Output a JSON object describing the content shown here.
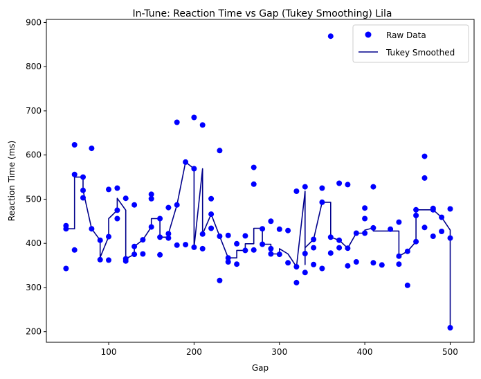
{
  "chart_data": {
    "type": "scatter",
    "title": "In-Tune: Reaction Time vs Gap (Tukey Smoothing) Lila",
    "xlabel": "Gap",
    "ylabel": "Reaction Time (ms)",
    "xlim": [
      27,
      528
    ],
    "ylim": [
      176,
      907
    ],
    "xticks": [
      100,
      200,
      300,
      400,
      500
    ],
    "yticks": [
      200,
      300,
      400,
      500,
      600,
      700,
      800,
      900
    ],
    "grid": false,
    "legend_position": "top-right",
    "series": [
      {
        "name": "Raw Data",
        "kind": "scatter",
        "color": "#0000ff",
        "points": [
          [
            50,
            440
          ],
          [
            50,
            433
          ],
          [
            50,
            343
          ],
          [
            60,
            623
          ],
          [
            60,
            556
          ],
          [
            60,
            385
          ],
          [
            70,
            550
          ],
          [
            70,
            520
          ],
          [
            70,
            503
          ],
          [
            80,
            615
          ],
          [
            80,
            433
          ],
          [
            90,
            407
          ],
          [
            90,
            363
          ],
          [
            100,
            522
          ],
          [
            100,
            415
          ],
          [
            100,
            362
          ],
          [
            110,
            525
          ],
          [
            110,
            475
          ],
          [
            110,
            456
          ],
          [
            120,
            502
          ],
          [
            120,
            365
          ],
          [
            120,
            360
          ],
          [
            130,
            487
          ],
          [
            130,
            393
          ],
          [
            130,
            375
          ],
          [
            140,
            408
          ],
          [
            140,
            376
          ],
          [
            150,
            511
          ],
          [
            150,
            501
          ],
          [
            150,
            437
          ],
          [
            160,
            456
          ],
          [
            160,
            414
          ],
          [
            160,
            374
          ],
          [
            170,
            481
          ],
          [
            170,
            422
          ],
          [
            170,
            412
          ],
          [
            180,
            674
          ],
          [
            180,
            487
          ],
          [
            180,
            396
          ],
          [
            190,
            584
          ],
          [
            190,
            397
          ],
          [
            200,
            685
          ],
          [
            200,
            569
          ],
          [
            200,
            391
          ],
          [
            210,
            668
          ],
          [
            210,
            421
          ],
          [
            210,
            388
          ],
          [
            220,
            501
          ],
          [
            220,
            466
          ],
          [
            220,
            434
          ],
          [
            230,
            610
          ],
          [
            230,
            416
          ],
          [
            230,
            316
          ],
          [
            240,
            418
          ],
          [
            240,
            367
          ],
          [
            240,
            358
          ],
          [
            250,
            399
          ],
          [
            250,
            353
          ],
          [
            260,
            417
          ],
          [
            260,
            384
          ],
          [
            270,
            572
          ],
          [
            270,
            534
          ],
          [
            270,
            385
          ],
          [
            280,
            433
          ],
          [
            280,
            398
          ],
          [
            290,
            450
          ],
          [
            290,
            388
          ],
          [
            290,
            376
          ],
          [
            300,
            432
          ],
          [
            300,
            375
          ],
          [
            310,
            429
          ],
          [
            310,
            356
          ],
          [
            320,
            518
          ],
          [
            320,
            347
          ],
          [
            320,
            311
          ],
          [
            330,
            528
          ],
          [
            330,
            377
          ],
          [
            330,
            334
          ],
          [
            340,
            409
          ],
          [
            340,
            390
          ],
          [
            340,
            352
          ],
          [
            350,
            525
          ],
          [
            350,
            493
          ],
          [
            350,
            343
          ],
          [
            360,
            869
          ],
          [
            360,
            414
          ],
          [
            360,
            378
          ],
          [
            370,
            536
          ],
          [
            370,
            407
          ],
          [
            370,
            390
          ],
          [
            380,
            533
          ],
          [
            380,
            389
          ],
          [
            380,
            349
          ],
          [
            390,
            423
          ],
          [
            390,
            358
          ],
          [
            400,
            480
          ],
          [
            400,
            456
          ],
          [
            400,
            423
          ],
          [
            410,
            528
          ],
          [
            410,
            435
          ],
          [
            410,
            356
          ],
          [
            420,
            351
          ],
          [
            430,
            432
          ],
          [
            440,
            448
          ],
          [
            440,
            371
          ],
          [
            440,
            353
          ],
          [
            450,
            382
          ],
          [
            450,
            305
          ],
          [
            460,
            476
          ],
          [
            460,
            463
          ],
          [
            460,
            404
          ],
          [
            470,
            597
          ],
          [
            470,
            548
          ],
          [
            470,
            436
          ],
          [
            480,
            479
          ],
          [
            480,
            476
          ],
          [
            480,
            416
          ],
          [
            490,
            459
          ],
          [
            490,
            427
          ],
          [
            500,
            478
          ],
          [
            500,
            412
          ],
          [
            500,
            209
          ]
        ]
      },
      {
        "name": "Tukey Smoothed",
        "kind": "line",
        "color": "#00008b",
        "points": [
          [
            50,
            433
          ],
          [
            50,
            433
          ],
          [
            50,
            433
          ],
          [
            60,
            433
          ],
          [
            60,
            556
          ],
          [
            60,
            550
          ],
          [
            70,
            550
          ],
          [
            70,
            520
          ],
          [
            70,
            520
          ],
          [
            80,
            433
          ],
          [
            80,
            433
          ],
          [
            90,
            407
          ],
          [
            90,
            368
          ],
          [
            100,
            415
          ],
          [
            100,
            456
          ],
          [
            100,
            456
          ],
          [
            110,
            475
          ],
          [
            110,
            475
          ],
          [
            110,
            502
          ],
          [
            120,
            475
          ],
          [
            120,
            365
          ],
          [
            120,
            365
          ],
          [
            130,
            375
          ],
          [
            130,
            393
          ],
          [
            130,
            393
          ],
          [
            140,
            408
          ],
          [
            140,
            408
          ],
          [
            150,
            437
          ],
          [
            150,
            456
          ],
          [
            150,
            456
          ],
          [
            160,
            456
          ],
          [
            160,
            414
          ],
          [
            160,
            414
          ],
          [
            170,
            414
          ],
          [
            170,
            422
          ],
          [
            170,
            422
          ],
          [
            180,
            487
          ],
          [
            180,
            487
          ],
          [
            180,
            487
          ],
          [
            190,
            584
          ],
          [
            190,
            584
          ],
          [
            200,
            569
          ],
          [
            200,
            569
          ],
          [
            200,
            391
          ],
          [
            210,
            569
          ],
          [
            210,
            421
          ],
          [
            210,
            421
          ],
          [
            220,
            466
          ],
          [
            220,
            466
          ],
          [
            220,
            466
          ],
          [
            230,
            416
          ],
          [
            230,
            416
          ],
          [
            230,
            416
          ],
          [
            240,
            367
          ],
          [
            240,
            367
          ],
          [
            240,
            367
          ],
          [
            250,
            367
          ],
          [
            250,
            384
          ],
          [
            260,
            384
          ],
          [
            260,
            399
          ],
          [
            270,
            399
          ],
          [
            270,
            434
          ],
          [
            270,
            434
          ],
          [
            280,
            434
          ],
          [
            280,
            398
          ],
          [
            290,
            398
          ],
          [
            290,
            376
          ],
          [
            290,
            376
          ],
          [
            300,
            376
          ],
          [
            300,
            388
          ],
          [
            310,
            376
          ],
          [
            310,
            376
          ],
          [
            320,
            347
          ],
          [
            320,
            347
          ],
          [
            320,
            347
          ],
          [
            330,
            518
          ],
          [
            330,
            352
          ],
          [
            330,
            390
          ],
          [
            340,
            409
          ],
          [
            340,
            409
          ],
          [
            340,
            409
          ],
          [
            350,
            493
          ],
          [
            350,
            493
          ],
          [
            350,
            493
          ],
          [
            360,
            493
          ],
          [
            360,
            414
          ],
          [
            360,
            414
          ],
          [
            370,
            407
          ],
          [
            370,
            407
          ],
          [
            370,
            407
          ],
          [
            380,
            389
          ],
          [
            380,
            389
          ],
          [
            380,
            389
          ],
          [
            390,
            423
          ],
          [
            390,
            423
          ],
          [
            400,
            423
          ],
          [
            400,
            430
          ],
          [
            400,
            430
          ],
          [
            410,
            435
          ],
          [
            410,
            428
          ],
          [
            410,
            428
          ],
          [
            420,
            428
          ],
          [
            430,
            428
          ],
          [
            440,
            428
          ],
          [
            440,
            371
          ],
          [
            440,
            371
          ],
          [
            450,
            382
          ],
          [
            450,
            382
          ],
          [
            460,
            404
          ],
          [
            460,
            404
          ],
          [
            460,
            476
          ],
          [
            470,
            476
          ],
          [
            470,
            476
          ],
          [
            470,
            476
          ],
          [
            480,
            476
          ],
          [
            480,
            476
          ],
          [
            480,
            476
          ],
          [
            490,
            459
          ],
          [
            490,
            459
          ],
          [
            500,
            430
          ],
          [
            500,
            412
          ],
          [
            500,
            209
          ]
        ]
      }
    ]
  }
}
